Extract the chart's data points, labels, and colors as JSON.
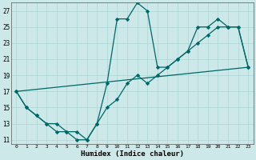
{
  "xlabel": "Humidex (Indice chaleur)",
  "xlim": [
    -0.5,
    23.5
  ],
  "ylim": [
    10.5,
    28.0
  ],
  "yticks": [
    11,
    13,
    15,
    17,
    19,
    21,
    23,
    25,
    27
  ],
  "xticks": [
    0,
    1,
    2,
    3,
    4,
    5,
    6,
    7,
    8,
    9,
    10,
    11,
    12,
    13,
    14,
    15,
    16,
    17,
    18,
    19,
    20,
    21,
    22,
    23
  ],
  "bg_color": "#cce8e8",
  "line_color": "#006666",
  "grid_color": "#b0d8d8",
  "line1_x": [
    0,
    1,
    2,
    3,
    4,
    5,
    6,
    7,
    8,
    9,
    10,
    11,
    12,
    13,
    14,
    15,
    16,
    17,
    18,
    19,
    20,
    21,
    22,
    23
  ],
  "line1_y": [
    17,
    15,
    14,
    13,
    12,
    12,
    11,
    11,
    13,
    15,
    16,
    18,
    19,
    18,
    19,
    20,
    21,
    22,
    23,
    24,
    25,
    25,
    25,
    20
  ],
  "line2_x": [
    0,
    1,
    2,
    3,
    4,
    5,
    6,
    7,
    8,
    9,
    10,
    11,
    12,
    13,
    14,
    15,
    16,
    17,
    18,
    19,
    20,
    21,
    22,
    23
  ],
  "line2_y": [
    17,
    15,
    14,
    13,
    13,
    12,
    12,
    11,
    13,
    18,
    26,
    26,
    28,
    27,
    20,
    20,
    21,
    22,
    25,
    25,
    26,
    25,
    25,
    20
  ],
  "line3_x": [
    0,
    23
  ],
  "line3_y": [
    17,
    20
  ]
}
